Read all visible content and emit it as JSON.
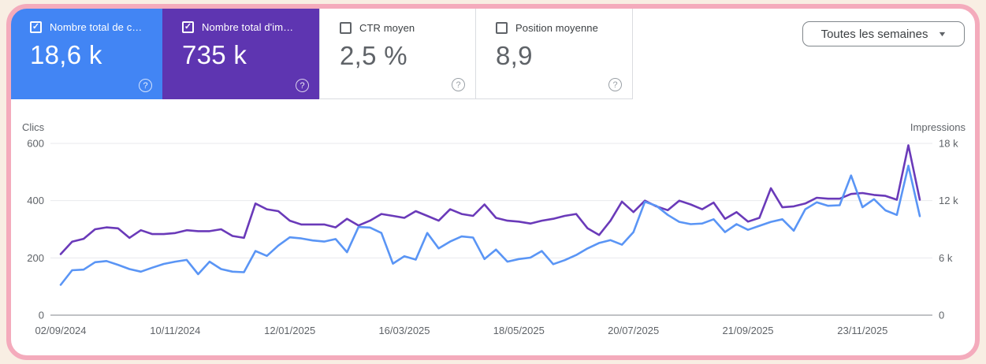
{
  "colors": {
    "page_background": "#f8eee3",
    "frame_border": "#f4abbc",
    "clicks_accent": "#4285f4",
    "impressions_accent": "#5e35b1",
    "clicks_line": "#5a95f5",
    "impressions_line": "#6a3ab9",
    "grid_line": "#e8eaed",
    "baseline": "#80868b",
    "axis_text": "#5f6368"
  },
  "metrics": [
    {
      "label": "Nombre total de c…",
      "value": "18,6 k",
      "checked": true,
      "color": "#4285f4"
    },
    {
      "label": "Nombre total d'im…",
      "value": "735 k",
      "checked": true,
      "color": "#5e35b1"
    },
    {
      "label": "CTR moyen",
      "value": "2,5 %",
      "checked": false,
      "color": null
    },
    {
      "label": "Position moyenne",
      "value": "8,9",
      "checked": false,
      "color": null
    }
  ],
  "help_glyph": "?",
  "filter": {
    "label": "Toutes les semaines",
    "caret": "▼"
  },
  "chart_data": {
    "type": "line",
    "title": "",
    "grid": true,
    "legend_position": "none",
    "x_labels": [
      "02/09/2024",
      "10/11/2024",
      "12/01/2025",
      "16/03/2025",
      "18/05/2025",
      "20/07/2025",
      "21/09/2025",
      "23/11/2025"
    ],
    "x_label_indices": [
      0,
      10,
      20,
      30,
      40,
      50,
      60,
      70
    ],
    "left_axis": {
      "title": "Clics",
      "ticks": [
        "0",
        "200",
        "400",
        "600"
      ],
      "range": [
        0,
        600
      ]
    },
    "right_axis": {
      "title": "Impressions",
      "ticks": [
        "0",
        "6 k",
        "12 k",
        "18 k"
      ],
      "range": [
        0,
        18000
      ]
    },
    "series": [
      {
        "name": "Impressions",
        "axis": "right",
        "color": "#6a3ab9",
        "values": [
          6400,
          7700,
          8000,
          9000,
          9200,
          9100,
          8100,
          8900,
          8500,
          8500,
          8600,
          8900,
          8800,
          8800,
          9000,
          8300,
          8100,
          11700,
          11100,
          10900,
          9900,
          9500,
          9500,
          9500,
          9200,
          10100,
          9400,
          9900,
          10600,
          10400,
          10200,
          10900,
          10400,
          9900,
          11100,
          10600,
          10400,
          11600,
          10200,
          9900,
          9800,
          9600,
          9900,
          10100,
          10400,
          10600,
          9100,
          8400,
          9900,
          11900,
          10800,
          12000,
          11400,
          11000,
          12000,
          11600,
          11100,
          11800,
          10100,
          10800,
          9800,
          10200,
          13300,
          11300,
          11400,
          11700,
          12300,
          12200,
          12200,
          12700,
          12800,
          12600,
          12500,
          12100,
          17800,
          12100
        ]
      },
      {
        "name": "Clics",
        "axis": "left",
        "color": "#5a95f5",
        "values": [
          106,
          157,
          159,
          185,
          189,
          176,
          161,
          152,
          166,
          179,
          187,
          193,
          143,
          187,
          161,
          152,
          150,
          224,
          207,
          243,
          272,
          268,
          261,
          257,
          266,
          220,
          308,
          306,
          287,
          180,
          206,
          194,
          287,
          233,
          257,
          275,
          271,
          196,
          229,
          187,
          196,
          201,
          224,
          178,
          192,
          210,
          233,
          252,
          262,
          246,
          290,
          396,
          382,
          350,
          326,
          318,
          320,
          335,
          290,
          318,
          298,
          312,
          326,
          335,
          295,
          370,
          394,
          382,
          384,
          488,
          377,
          405,
          366,
          350,
          522,
          346
        ]
      }
    ]
  }
}
